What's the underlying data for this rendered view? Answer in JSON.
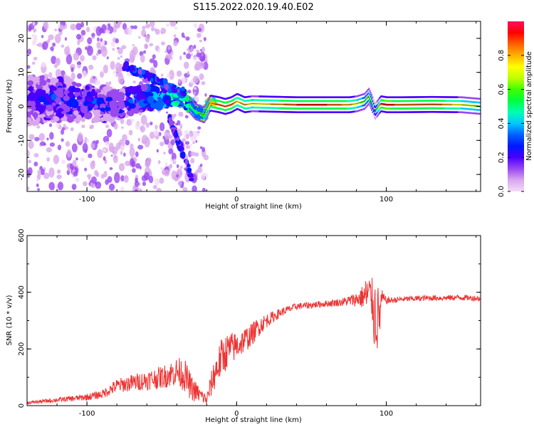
{
  "figure": {
    "title": "S115.2022.020.19.40.E02"
  },
  "chart_data": [
    {
      "type": "heatmap",
      "title": "",
      "xlabel": "Height of straight line (km)",
      "ylabel": "Frequency (Hz)",
      "xlim": [
        -140,
        163
      ],
      "ylim": [
        -25,
        25
      ],
      "x_ticks": [
        -100,
        0,
        100
      ],
      "x_tick_labels": [
        "-100",
        "0",
        "100"
      ],
      "y_ticks": [
        -20,
        -10,
        0,
        10,
        20
      ],
      "y_tick_labels": [
        "-20",
        "-10",
        "0",
        "10",
        "20"
      ],
      "colorbar": {
        "label": "Normalized spectral amplitude",
        "range": [
          0,
          1
        ],
        "ticks": [
          0.0,
          0.2,
          0.4,
          0.6,
          0.8
        ],
        "tick_labels": [
          "0.0",
          "0.2",
          "0.4",
          "0.6",
          "0.8"
        ],
        "colors": [
          "#f2dcf7",
          "#d9a7ee",
          "#9a48f0",
          "#4a00ff",
          "#0018ff",
          "#0060ff",
          "#00c8ff",
          "#00ffb0",
          "#00ff40",
          "#40ff00",
          "#c0ff00",
          "#ffff00",
          "#ffb000",
          "#ff6000",
          "#ff0000",
          "#ff1060"
        ]
      },
      "grid": false,
      "ridge": {
        "description_points_x": [
          -140,
          -120,
          -100,
          -80,
          -60,
          -45,
          -35,
          -28,
          -22,
          -18,
          -12,
          -8,
          -4,
          0,
          5,
          10,
          20,
          40,
          60,
          75,
          80,
          85,
          88,
          90,
          92,
          96,
          100,
          110,
          130,
          150,
          163
        ],
        "frequency_y": [
          1.5,
          2.0,
          1.0,
          0.5,
          2.5,
          3.0,
          2.0,
          -1.5,
          -2.5,
          1.0,
          0.5,
          0.0,
          0.5,
          1.5,
          0.5,
          0.8,
          0.7,
          0.5,
          0.5,
          0.5,
          0.8,
          1.5,
          3.0,
          1.0,
          -1.5,
          0.8,
          0.5,
          0.5,
          0.6,
          0.5,
          0.0
        ],
        "amplitude": [
          0.25,
          0.3,
          0.3,
          0.25,
          0.35,
          0.45,
          0.5,
          0.55,
          0.6,
          0.75,
          0.9,
          0.85,
          0.9,
          0.75,
          0.8,
          0.7,
          0.75,
          0.9,
          0.9,
          0.8,
          0.7,
          0.55,
          0.6,
          0.5,
          0.3,
          0.9,
          0.95,
          0.85,
          0.9,
          0.7,
          0.6
        ]
      }
    },
    {
      "type": "line",
      "title": "",
      "xlabel": "Height of straight line (km)",
      "ylabel": "SNR (10 * v/v)",
      "xlim": [
        -140,
        163
      ],
      "ylim": [
        0,
        600
      ],
      "x_ticks": [
        -100,
        0,
        100
      ],
      "x_tick_labels": [
        "-100",
        "0",
        "100"
      ],
      "y_ticks": [
        0,
        200,
        400,
        600
      ],
      "y_tick_labels": [
        "0",
        "200",
        "400",
        "600"
      ],
      "grid": false,
      "series": [
        {
          "color": "#ee3333",
          "x": [
            -140,
            -120,
            -100,
            -90,
            -80,
            -70,
            -60,
            -50,
            -40,
            -35,
            -30,
            -25,
            -20,
            -15,
            -10,
            -5,
            0,
            5,
            10,
            15,
            20,
            30,
            40,
            50,
            60,
            70,
            80,
            85,
            88,
            90,
            92,
            95,
            97,
            100,
            110,
            120,
            130,
            140,
            150,
            163
          ],
          "y": [
            10,
            20,
            30,
            40,
            70,
            80,
            90,
            100,
            120,
            110,
            60,
            40,
            20,
            110,
            170,
            200,
            210,
            230,
            250,
            280,
            300,
            330,
            350,
            355,
            360,
            365,
            375,
            385,
            390,
            385,
            330,
            300,
            380,
            370,
            375,
            378,
            380,
            380,
            382,
            378
          ],
          "noise_amplitude": [
            5,
            8,
            12,
            15,
            25,
            30,
            35,
            40,
            50,
            60,
            45,
            30,
            20,
            60,
            70,
            60,
            50,
            45,
            40,
            35,
            25,
            15,
            12,
            12,
            12,
            14,
            25,
            45,
            90,
            60,
            140,
            120,
            30,
            12,
            10,
            10,
            10,
            10,
            10,
            10
          ]
        }
      ]
    }
  ]
}
